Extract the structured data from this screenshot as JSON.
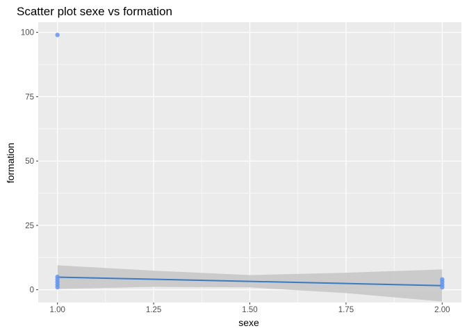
{
  "chart_data": {
    "type": "scatter",
    "title": "Scatter plot sexe vs formation",
    "xlabel": "sexe",
    "ylabel": "formation",
    "xlim": [
      0.95,
      2.05
    ],
    "ylim": [
      -4.95,
      103.95
    ],
    "x_ticks": [
      "1.00",
      "1.25",
      "1.50",
      "1.75",
      "2.00"
    ],
    "y_ticks": [
      "0",
      "25",
      "50",
      "75",
      "100"
    ],
    "grid": true,
    "legend": "none",
    "points": [
      {
        "x": 1,
        "y": 99
      },
      {
        "x": 1,
        "y": 5
      },
      {
        "x": 1,
        "y": 4
      },
      {
        "x": 1,
        "y": 3
      },
      {
        "x": 1,
        "y": 2
      },
      {
        "x": 1,
        "y": 1
      },
      {
        "x": 2,
        "y": 4
      },
      {
        "x": 2,
        "y": 3
      },
      {
        "x": 2,
        "y": 2
      },
      {
        "x": 2,
        "y": 1
      }
    ],
    "smooth_line": [
      {
        "x": 1.0,
        "y": 4.9
      },
      {
        "x": 2.0,
        "y": 1.6
      }
    ],
    "confidence_band": [
      {
        "x": 1.0,
        "lower": 0.3,
        "upper": 9.5
      },
      {
        "x": 1.25,
        "lower": 1.1,
        "upper": 7.4
      },
      {
        "x": 1.5,
        "lower": 0.9,
        "upper": 5.7
      },
      {
        "x": 1.75,
        "lower": -1.3,
        "upper": 6.6
      },
      {
        "x": 2.0,
        "lower": -4.6,
        "upper": 7.9
      }
    ],
    "colors": {
      "panel_background": "#ebebeb",
      "grid_major": "#ffffff",
      "point": "#6495ed",
      "smooth_line": "#3a7abf",
      "band": "#c8c8c8"
    }
  }
}
